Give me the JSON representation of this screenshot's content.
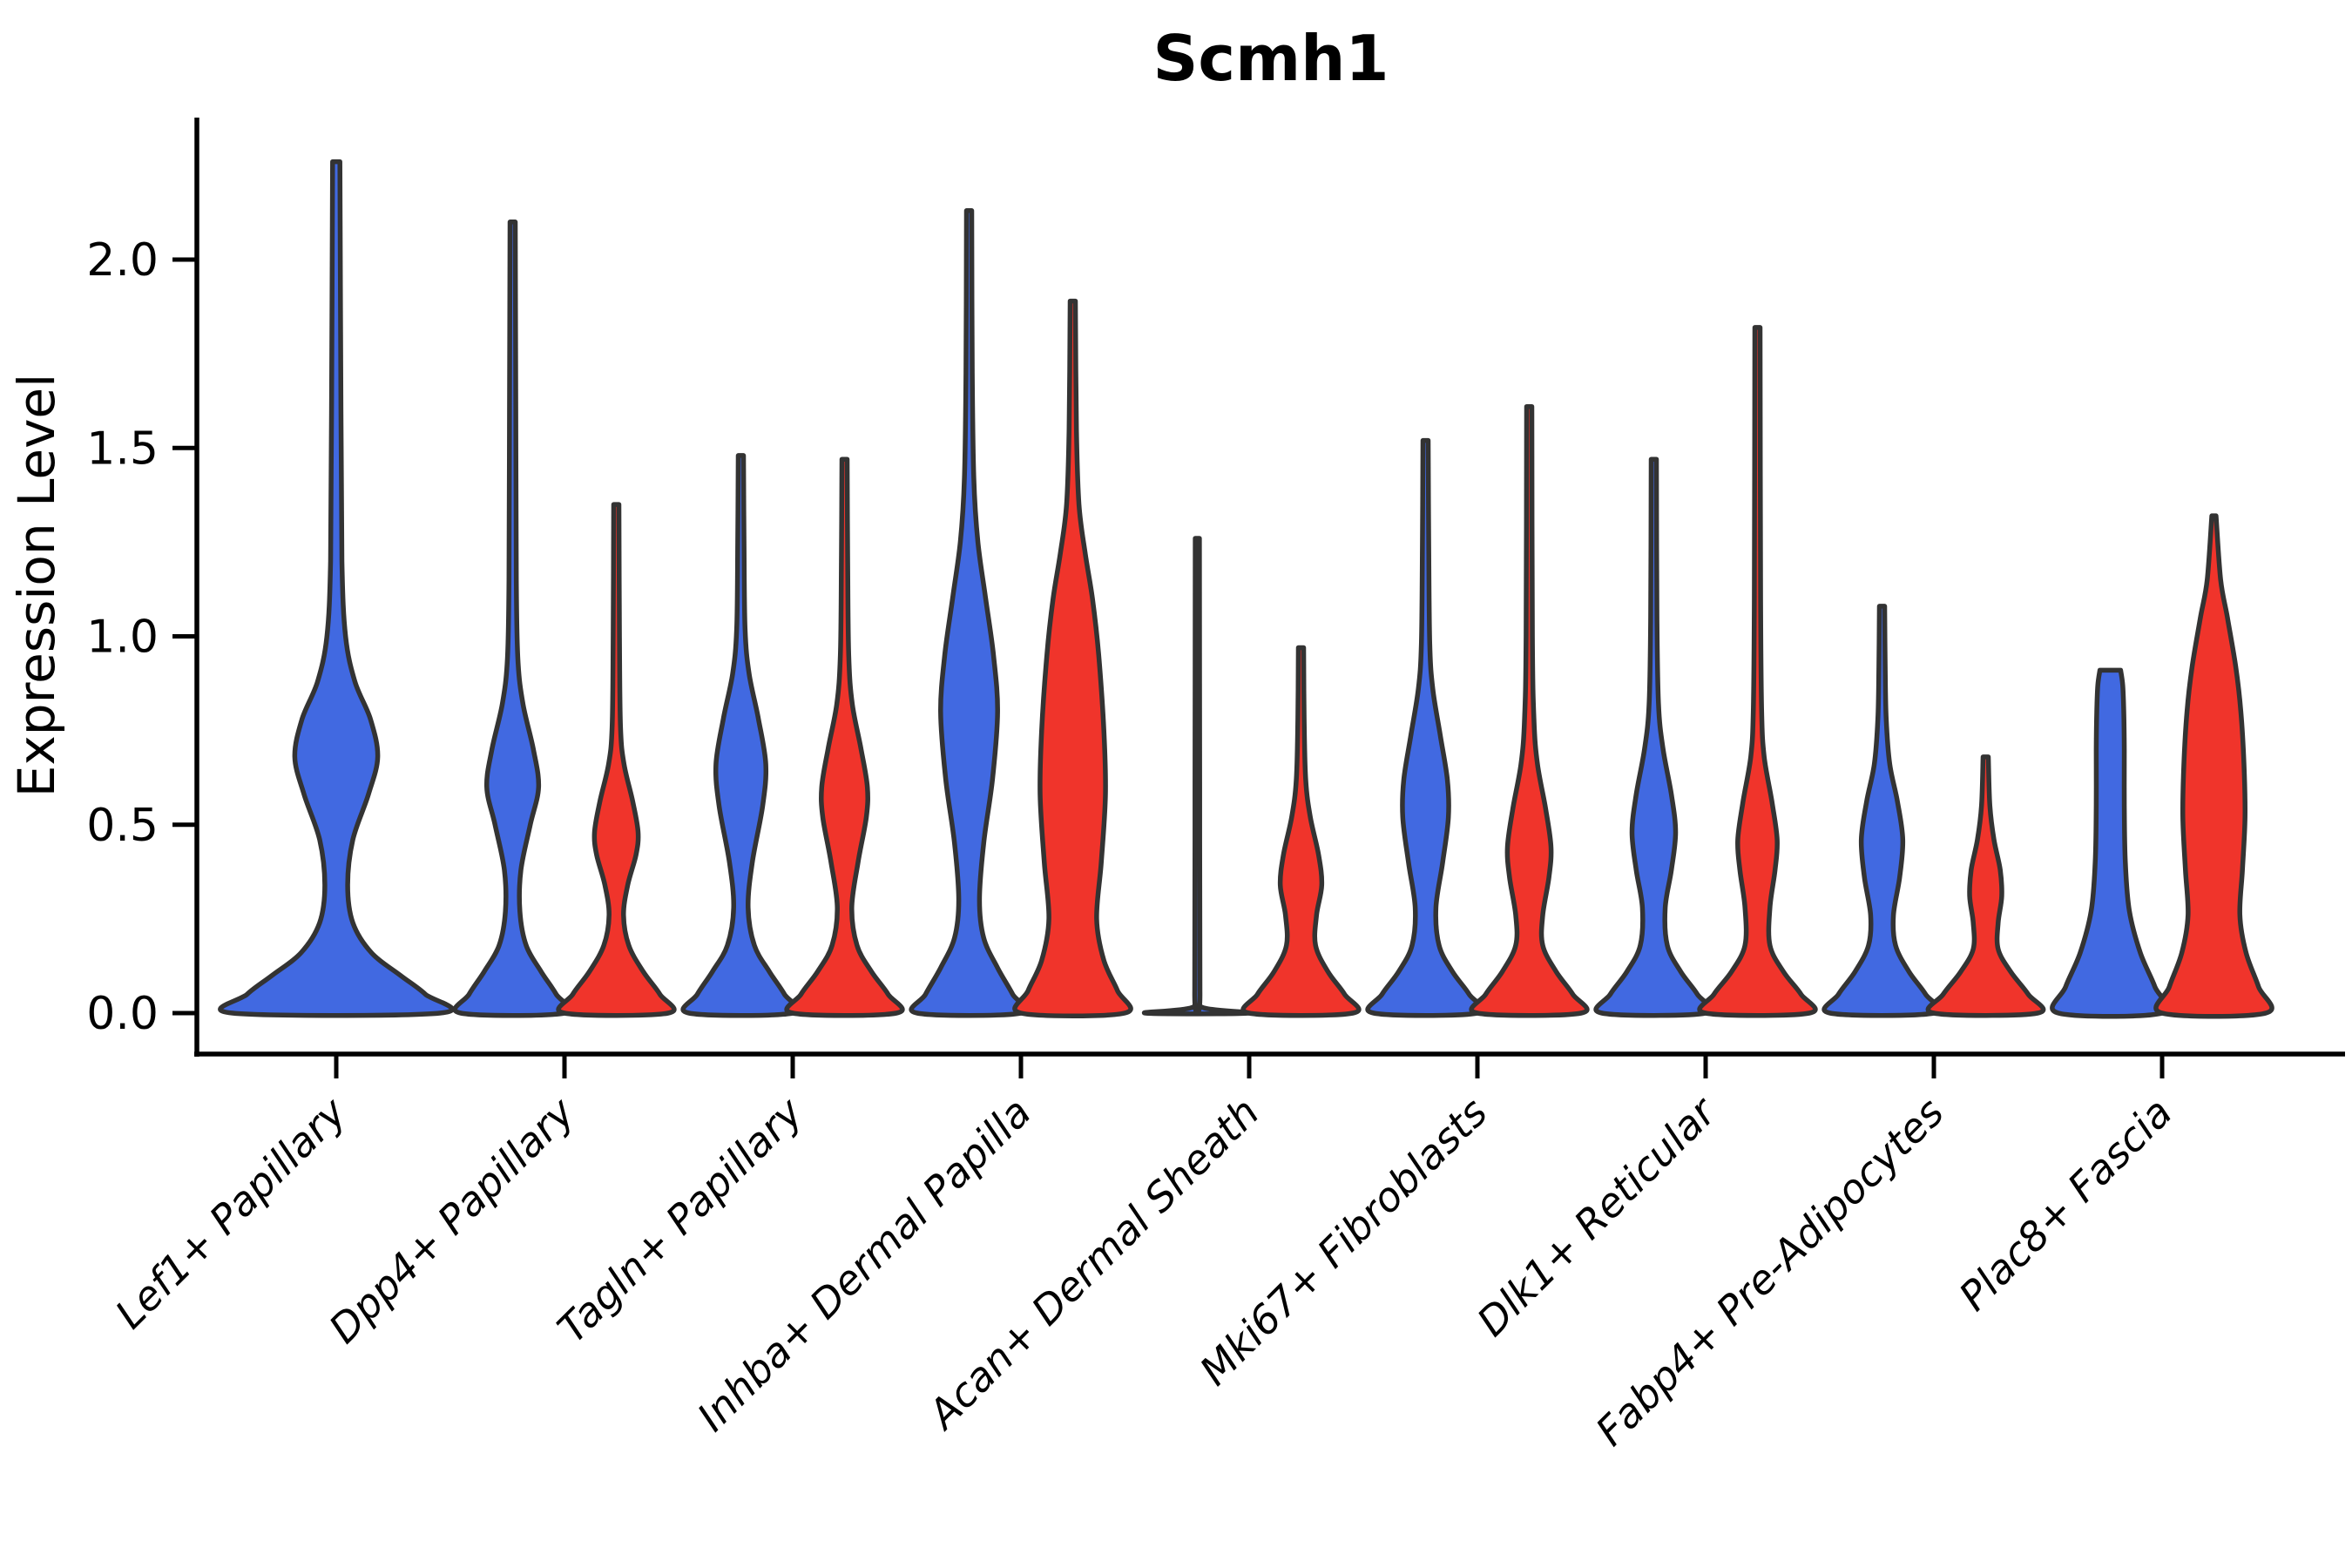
{
  "colors": {
    "blue": "#4169E1",
    "red": "#F0342B",
    "outline": "#333333",
    "axis": "#000000",
    "background": "#ffffff"
  },
  "chart_data": {
    "type": "violin",
    "title": "Scmh1",
    "xlabel": "",
    "ylabel": "Expression Level",
    "ylim": [
      -0.08,
      2.42
    ],
    "yticks": [
      "0.0",
      "0.5",
      "1.0",
      "1.5",
      "2.0"
    ],
    "ytick_values": [
      0.0,
      0.5,
      1.0,
      1.5,
      2.0
    ],
    "grid": false,
    "legend_position": "none",
    "series_names": [
      "blue",
      "red"
    ],
    "categories": [
      "Lef1+ Papillary",
      "Dpp4+ Papillary",
      "Tagln+ Papillary",
      "Inhba+ Dermal Papilla",
      "Acan+ Dermal Sheath",
      "Mki67+ Fibroblasts",
      "Dlk1+ Reticular",
      "Fabp4+ Pre-Adipocytes",
      "Plac8+ Fascia"
    ],
    "violins": [
      {
        "category_index": 0,
        "series": "blue",
        "position": "solo",
        "max": 2.26,
        "profile": [
          [
            0,
            1.0
          ],
          [
            0.05,
            0.86
          ],
          [
            0.1,
            0.62
          ],
          [
            0.16,
            0.34
          ],
          [
            0.24,
            0.16
          ],
          [
            0.34,
            0.11
          ],
          [
            0.46,
            0.16
          ],
          [
            0.58,
            0.31
          ],
          [
            0.68,
            0.4
          ],
          [
            0.78,
            0.33
          ],
          [
            0.88,
            0.18
          ],
          [
            1.0,
            0.09
          ],
          [
            1.2,
            0.055
          ],
          [
            1.6,
            0.045
          ],
          [
            2.26,
            0.035
          ]
        ]
      },
      {
        "category_index": 1,
        "series": "blue",
        "position": "left",
        "max": 2.1,
        "profile": [
          [
            0,
            1.0
          ],
          [
            0.05,
            0.84
          ],
          [
            0.11,
            0.55
          ],
          [
            0.18,
            0.26
          ],
          [
            0.27,
            0.14
          ],
          [
            0.38,
            0.16
          ],
          [
            0.5,
            0.34
          ],
          [
            0.6,
            0.5
          ],
          [
            0.7,
            0.4
          ],
          [
            0.82,
            0.2
          ],
          [
            0.94,
            0.1
          ],
          [
            1.15,
            0.07
          ],
          [
            1.6,
            0.06
          ],
          [
            2.1,
            0.05
          ]
        ]
      },
      {
        "category_index": 1,
        "series": "red",
        "position": "right",
        "max": 1.35,
        "profile": [
          [
            0,
            1.0
          ],
          [
            0.05,
            0.84
          ],
          [
            0.11,
            0.52
          ],
          [
            0.18,
            0.24
          ],
          [
            0.26,
            0.14
          ],
          [
            0.34,
            0.22
          ],
          [
            0.42,
            0.38
          ],
          [
            0.48,
            0.42
          ],
          [
            0.56,
            0.32
          ],
          [
            0.66,
            0.15
          ],
          [
            0.76,
            0.08
          ],
          [
            1.0,
            0.06
          ],
          [
            1.35,
            0.05
          ]
        ]
      },
      {
        "category_index": 2,
        "series": "blue",
        "position": "left",
        "max": 1.48,
        "profile": [
          [
            0,
            1.0
          ],
          [
            0.05,
            0.84
          ],
          [
            0.11,
            0.55
          ],
          [
            0.18,
            0.26
          ],
          [
            0.28,
            0.14
          ],
          [
            0.4,
            0.22
          ],
          [
            0.55,
            0.42
          ],
          [
            0.66,
            0.48
          ],
          [
            0.78,
            0.34
          ],
          [
            0.9,
            0.16
          ],
          [
            1.02,
            0.08
          ],
          [
            1.25,
            0.06
          ],
          [
            1.48,
            0.05
          ]
        ]
      },
      {
        "category_index": 2,
        "series": "red",
        "position": "right",
        "max": 1.47,
        "profile": [
          [
            0,
            1.0
          ],
          [
            0.05,
            0.84
          ],
          [
            0.11,
            0.52
          ],
          [
            0.18,
            0.24
          ],
          [
            0.28,
            0.14
          ],
          [
            0.4,
            0.26
          ],
          [
            0.52,
            0.42
          ],
          [
            0.6,
            0.44
          ],
          [
            0.7,
            0.32
          ],
          [
            0.82,
            0.15
          ],
          [
            0.95,
            0.08
          ],
          [
            1.2,
            0.06
          ],
          [
            1.47,
            0.05
          ]
        ]
      },
      {
        "category_index": 3,
        "series": "blue",
        "position": "left",
        "max": 2.13,
        "profile": [
          [
            0,
            1.0
          ],
          [
            0.05,
            0.84
          ],
          [
            0.12,
            0.55
          ],
          [
            0.2,
            0.28
          ],
          [
            0.3,
            0.2
          ],
          [
            0.45,
            0.28
          ],
          [
            0.62,
            0.45
          ],
          [
            0.8,
            0.55
          ],
          [
            0.95,
            0.47
          ],
          [
            1.1,
            0.32
          ],
          [
            1.25,
            0.17
          ],
          [
            1.42,
            0.09
          ],
          [
            1.7,
            0.06
          ],
          [
            2.13,
            0.05
          ]
        ]
      },
      {
        "category_index": 3,
        "series": "red",
        "position": "right",
        "max": 1.89,
        "profile": [
          [
            0,
            1.0
          ],
          [
            0.06,
            0.86
          ],
          [
            0.14,
            0.6
          ],
          [
            0.25,
            0.46
          ],
          [
            0.4,
            0.55
          ],
          [
            0.58,
            0.63
          ],
          [
            0.75,
            0.6
          ],
          [
            0.95,
            0.5
          ],
          [
            1.1,
            0.38
          ],
          [
            1.22,
            0.24
          ],
          [
            1.35,
            0.12
          ],
          [
            1.55,
            0.07
          ],
          [
            1.89,
            0.05
          ]
        ]
      },
      {
        "category_index": 4,
        "series": "blue",
        "position": "left",
        "max": 1.26,
        "profile": [
          [
            0,
            1.0
          ],
          [
            0.015,
            0.1
          ],
          [
            0.06,
            0.05
          ],
          [
            0.6,
            0.045
          ],
          [
            1.26,
            0.04
          ]
        ]
      },
      {
        "category_index": 4,
        "series": "red",
        "position": "right",
        "max": 0.97,
        "profile": [
          [
            0,
            1.0
          ],
          [
            0.05,
            0.84
          ],
          [
            0.11,
            0.52
          ],
          [
            0.18,
            0.28
          ],
          [
            0.26,
            0.3
          ],
          [
            0.34,
            0.4
          ],
          [
            0.42,
            0.34
          ],
          [
            0.52,
            0.18
          ],
          [
            0.62,
            0.09
          ],
          [
            0.78,
            0.06
          ],
          [
            0.97,
            0.05
          ]
        ]
      },
      {
        "category_index": 5,
        "series": "blue",
        "position": "left",
        "max": 1.52,
        "profile": [
          [
            0,
            1.0
          ],
          [
            0.05,
            0.84
          ],
          [
            0.11,
            0.52
          ],
          [
            0.18,
            0.26
          ],
          [
            0.28,
            0.2
          ],
          [
            0.4,
            0.33
          ],
          [
            0.52,
            0.44
          ],
          [
            0.62,
            0.42
          ],
          [
            0.74,
            0.28
          ],
          [
            0.86,
            0.14
          ],
          [
            0.98,
            0.08
          ],
          [
            1.25,
            0.06
          ],
          [
            1.52,
            0.05
          ]
        ]
      },
      {
        "category_index": 5,
        "series": "red",
        "position": "right",
        "max": 1.61,
        "profile": [
          [
            0,
            1.0
          ],
          [
            0.05,
            0.84
          ],
          [
            0.11,
            0.52
          ],
          [
            0.18,
            0.26
          ],
          [
            0.26,
            0.26
          ],
          [
            0.36,
            0.38
          ],
          [
            0.44,
            0.42
          ],
          [
            0.54,
            0.32
          ],
          [
            0.66,
            0.16
          ],
          [
            0.78,
            0.09
          ],
          [
            1.0,
            0.06
          ],
          [
            1.61,
            0.05
          ]
        ]
      },
      {
        "category_index": 6,
        "series": "blue",
        "position": "left",
        "max": 1.47,
        "profile": [
          [
            0,
            1.0
          ],
          [
            0.05,
            0.84
          ],
          [
            0.11,
            0.52
          ],
          [
            0.18,
            0.26
          ],
          [
            0.28,
            0.22
          ],
          [
            0.38,
            0.34
          ],
          [
            0.48,
            0.42
          ],
          [
            0.58,
            0.34
          ],
          [
            0.7,
            0.18
          ],
          [
            0.82,
            0.09
          ],
          [
            1.05,
            0.06
          ],
          [
            1.47,
            0.05
          ]
        ]
      },
      {
        "category_index": 6,
        "series": "red",
        "position": "right",
        "max": 1.82,
        "profile": [
          [
            0,
            1.0
          ],
          [
            0.05,
            0.84
          ],
          [
            0.11,
            0.5
          ],
          [
            0.18,
            0.24
          ],
          [
            0.28,
            0.24
          ],
          [
            0.38,
            0.34
          ],
          [
            0.46,
            0.38
          ],
          [
            0.56,
            0.28
          ],
          [
            0.68,
            0.13
          ],
          [
            0.8,
            0.08
          ],
          [
            1.1,
            0.06
          ],
          [
            1.82,
            0.05
          ]
        ]
      },
      {
        "category_index": 7,
        "series": "blue",
        "position": "left",
        "max": 1.08,
        "profile": [
          [
            0,
            1.0
          ],
          [
            0.05,
            0.84
          ],
          [
            0.11,
            0.52
          ],
          [
            0.18,
            0.26
          ],
          [
            0.26,
            0.22
          ],
          [
            0.36,
            0.34
          ],
          [
            0.46,
            0.4
          ],
          [
            0.56,
            0.3
          ],
          [
            0.66,
            0.15
          ],
          [
            0.78,
            0.08
          ],
          [
            0.92,
            0.06
          ],
          [
            1.08,
            0.05
          ]
        ]
      },
      {
        "category_index": 7,
        "series": "red",
        "position": "right",
        "max": 0.68,
        "profile": [
          [
            0,
            1.0
          ],
          [
            0.05,
            0.82
          ],
          [
            0.11,
            0.48
          ],
          [
            0.17,
            0.24
          ],
          [
            0.24,
            0.24
          ],
          [
            0.31,
            0.31
          ],
          [
            0.38,
            0.28
          ],
          [
            0.46,
            0.16
          ],
          [
            0.55,
            0.08
          ],
          [
            0.68,
            0.05
          ]
        ]
      },
      {
        "category_index": 8,
        "series": "blue",
        "position": "left",
        "max": 0.91,
        "profile": [
          [
            0,
            1.0
          ],
          [
            0.07,
            0.86
          ],
          [
            0.16,
            0.58
          ],
          [
            0.27,
            0.37
          ],
          [
            0.4,
            0.29
          ],
          [
            0.55,
            0.27
          ],
          [
            0.7,
            0.27
          ],
          [
            0.8,
            0.26
          ],
          [
            0.87,
            0.24
          ],
          [
            0.91,
            0.2
          ]
        ]
      },
      {
        "category_index": 8,
        "series": "red",
        "position": "right",
        "max": 1.32,
        "profile": [
          [
            0,
            1.0
          ],
          [
            0.07,
            0.86
          ],
          [
            0.16,
            0.62
          ],
          [
            0.26,
            0.5
          ],
          [
            0.38,
            0.55
          ],
          [
            0.52,
            0.6
          ],
          [
            0.66,
            0.58
          ],
          [
            0.8,
            0.52
          ],
          [
            0.92,
            0.42
          ],
          [
            1.05,
            0.26
          ],
          [
            1.15,
            0.13
          ],
          [
            1.32,
            0.04
          ]
        ]
      }
    ]
  }
}
